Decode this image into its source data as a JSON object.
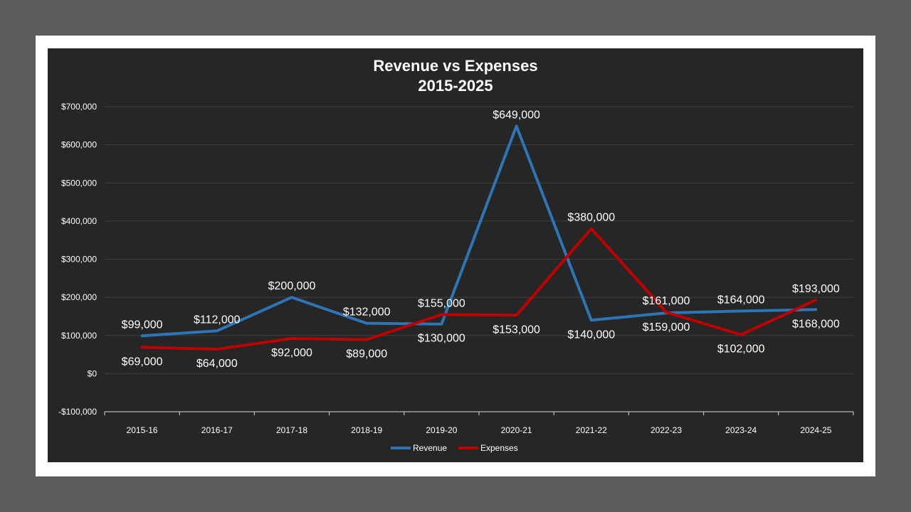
{
  "chart_data": {
    "type": "line",
    "title": "Revenue vs Expenses",
    "subtitle": "2015-2025",
    "categories": [
      "2015-16",
      "2016-17",
      "2017-18",
      "2018-19",
      "2019-20",
      "2020-21",
      "2021-22",
      "2022-23",
      "2023-24",
      "2024-25"
    ],
    "ylim": [
      -100000,
      700000
    ],
    "yticks": [
      -100000,
      0,
      100000,
      200000,
      300000,
      400000,
      500000,
      600000,
      700000
    ],
    "ytick_labels": [
      "-$100,000",
      "$0",
      "$100,000",
      "$200,000",
      "$300,000",
      "$400,000",
      "$500,000",
      "$600,000",
      "$700,000"
    ],
    "grid": true,
    "legend_position": "bottom",
    "series": [
      {
        "name": "Revenue",
        "color": "#2e75b6",
        "values": [
          99000,
          112000,
          200000,
          132000,
          130000,
          649000,
          140000,
          159000,
          164000,
          168000
        ],
        "labels": [
          "$99,000",
          "$112,000",
          "$200,000",
          "$132,000",
          "$130,000",
          "$649,000",
          "$140,000",
          "$159,000",
          "$164,000",
          "$168,000"
        ]
      },
      {
        "name": "Expenses",
        "color": "#c00000",
        "values": [
          69000,
          64000,
          92000,
          89000,
          155000,
          153000,
          380000,
          161000,
          102000,
          193000
        ],
        "labels": [
          "$69,000",
          "$64,000",
          "$92,000",
          "$89,000",
          "$155,000",
          "$153,000",
          "$380,000",
          "$161,000",
          "$102,000",
          "$193,000"
        ]
      }
    ]
  }
}
